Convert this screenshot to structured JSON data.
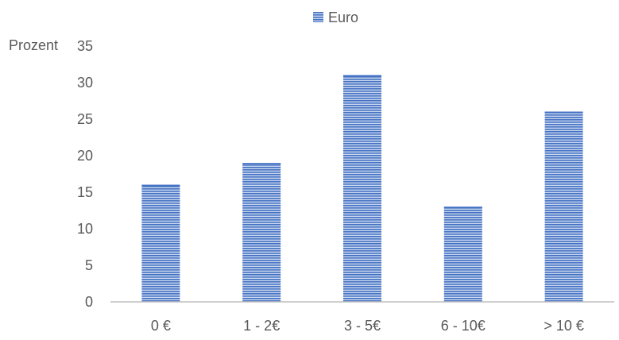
{
  "chart_data": {
    "type": "bar",
    "title": "",
    "xlabel": "",
    "ylabel": "Prozent",
    "categories": [
      "0 €",
      "1 - 2€",
      "3 - 5€",
      "6 - 10€",
      "> 10 €"
    ],
    "series": [
      {
        "name": "Euro",
        "values": [
          16,
          19,
          31,
          13,
          26
        ]
      }
    ],
    "ylim": [
      0,
      35
    ],
    "yticks": [
      0,
      5,
      10,
      15,
      20,
      25,
      30,
      35
    ],
    "grid": false,
    "legend": "top-center",
    "bar_color": "#4472C4",
    "bar_pattern": "horizontal-stripes"
  }
}
